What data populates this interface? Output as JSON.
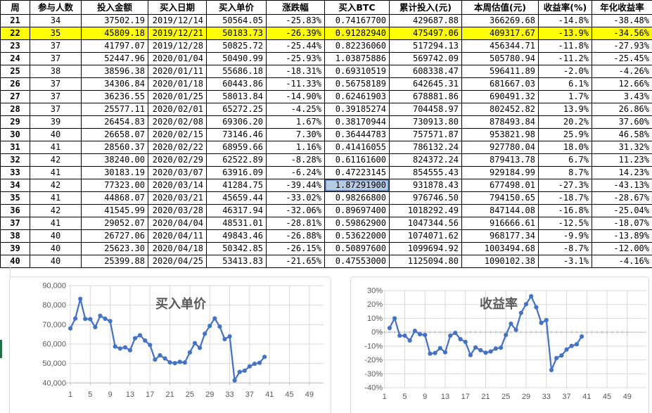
{
  "table": {
    "headers": [
      "周",
      "参与人数",
      "投入金额",
      "买入日期",
      "买入单价",
      "涨跌幅",
      "买入BTC",
      "累计投入(元)",
      "本周估值(元)",
      "收益率(%)",
      "年化收益率"
    ],
    "rows": [
      [
        "21",
        "34",
        "37502.19",
        "2019/12/14",
        "50564.05",
        "-25.83%",
        "0.74167700",
        "429687.88",
        "366269.68",
        "-14.8%",
        "-38.48%"
      ],
      [
        "22",
        "35",
        "45809.18",
        "2019/12/21",
        "50183.73",
        "-26.39%",
        "0.91282940",
        "475497.06",
        "409317.67",
        "-13.9%",
        "-34.56%"
      ],
      [
        "23",
        "37",
        "41797.07",
        "2019/12/28",
        "50825.72",
        "-25.44%",
        "0.82236060",
        "517294.13",
        "456344.71",
        "-11.8%",
        "-27.93%"
      ],
      [
        "24",
        "37",
        "52447.96",
        "2020/01/04",
        "50490.99",
        "-25.93%",
        "1.03875886",
        "569742.09",
        "505780.94",
        "-11.2%",
        "-25.45%"
      ],
      [
        "25",
        "38",
        "38596.38",
        "2020/01/11",
        "55686.18",
        "-18.31%",
        "0.69310519",
        "608338.47",
        "596411.89",
        "-2.0%",
        "-4.26%"
      ],
      [
        "26",
        "37",
        "34306.84",
        "2020/01/18",
        "60443.86",
        "-11.33%",
        "0.56758189",
        "642645.31",
        "681667.03",
        "6.1%",
        "12.66%"
      ],
      [
        "27",
        "37",
        "36236.55",
        "2020/01/25",
        "58013.84",
        "-14.90%",
        "0.62461903",
        "678881.86",
        "690491.32",
        "1.7%",
        "3.43%"
      ],
      [
        "28",
        "37",
        "25577.11",
        "2020/02/01",
        "65272.25",
        "-4.25%",
        "0.39185274",
        "704458.97",
        "802452.82",
        "13.9%",
        "26.86%"
      ],
      [
        "29",
        "39",
        "26454.83",
        "2020/02/08",
        "69306.20",
        "1.67%",
        "0.38170944",
        "730913.80",
        "878493.84",
        "20.2%",
        "37.60%"
      ],
      [
        "30",
        "40",
        "26658.07",
        "2020/02/15",
        "73146.46",
        "7.30%",
        "0.36444783",
        "757571.87",
        "953821.98",
        "25.9%",
        "46.58%"
      ],
      [
        "31",
        "41",
        "28560.37",
        "2020/02/22",
        "68959.66",
        "1.16%",
        "0.41416055",
        "786132.24",
        "927780.04",
        "18.0%",
        "31.32%"
      ],
      [
        "32",
        "42",
        "38240.00",
        "2020/02/29",
        "62522.89",
        "-8.28%",
        "0.61161600",
        "824372.24",
        "879413.78",
        "6.7%",
        "11.23%"
      ],
      [
        "33",
        "41",
        "30183.19",
        "2020/03/07",
        "63916.09",
        "-6.24%",
        "0.47223145",
        "854555.43",
        "929184.99",
        "8.7%",
        "14.23%"
      ],
      [
        "34",
        "42",
        "77323.00",
        "2020/03/14",
        "41284.75",
        "-39.44%",
        "1.87291900",
        "931878.43",
        "677498.01",
        "-27.3%",
        "-43.13%"
      ],
      [
        "35",
        "41",
        "44868.07",
        "2020/03/21",
        "45659.44",
        "-33.02%",
        "0.98266800",
        "976746.50",
        "794150.65",
        "-18.7%",
        "-28.67%"
      ],
      [
        "36",
        "42",
        "41545.99",
        "2020/03/28",
        "46317.94",
        "-32.06%",
        "0.89697400",
        "1018292.49",
        "847144.08",
        "-16.8%",
        "-25.04%"
      ],
      [
        "37",
        "41",
        "29052.07",
        "2020/04/04",
        "48531.01",
        "-28.81%",
        "0.59862900",
        "1047344.56",
        "916666.61",
        "-12.5%",
        "-18.07%"
      ],
      [
        "38",
        "40",
        "26727.06",
        "2020/04/11",
        "49843.46",
        "-26.88%",
        "0.53622000",
        "1074071.62",
        "968177.34",
        "-9.9%",
        "-13.89%"
      ],
      [
        "39",
        "40",
        "25623.30",
        "2020/04/18",
        "50342.85",
        "-26.15%",
        "0.50897600",
        "1099694.92",
        "1003494.68",
        "-8.7%",
        "-12.00%"
      ],
      [
        "40",
        "40",
        "25399.88",
        "2020/04/25",
        "53413.83",
        "-21.65%",
        "0.47553000",
        "1125094.80",
        "1090102.38",
        "-3.1%",
        "-4.16%"
      ]
    ],
    "highlight_row_week": "22",
    "selected_cell": {
      "week": "34",
      "col": 6,
      "value": "1.87291900"
    },
    "colors": {
      "highlight": "#FFFF00",
      "selected_fill": "#B6CBE3",
      "selected_border": "#3A66A7"
    }
  },
  "chart_data": [
    {
      "type": "line",
      "title": "买入单价",
      "x": [
        1,
        2,
        3,
        4,
        5,
        6,
        7,
        8,
        9,
        10,
        11,
        12,
        13,
        14,
        15,
        16,
        17,
        18,
        19,
        20,
        21,
        22,
        23,
        24,
        25,
        26,
        27,
        28,
        29,
        30,
        31,
        32,
        33,
        34,
        35,
        36,
        37,
        38,
        39,
        40
      ],
      "values": [
        68000,
        73100,
        83200,
        72900,
        72800,
        68700,
        74500,
        73000,
        71800,
        58700,
        57700,
        58300,
        56800,
        63000,
        64500,
        61800,
        59500,
        52000,
        54200,
        52600,
        50564,
        50184,
        50826,
        50491,
        55686,
        60444,
        58014,
        65272,
        69306,
        73146,
        68960,
        62523,
        63916,
        41285,
        45659,
        46318,
        48531,
        49843,
        50343,
        53414
      ],
      "ylim": [
        40000,
        90000
      ],
      "yticks": [
        90000,
        80000,
        70000,
        60000,
        50000,
        40000
      ],
      "ytick_labels": [
        "90,000",
        "80,000",
        "70,000",
        "60,000",
        "50,000",
        "40,000"
      ],
      "xticks": [
        1,
        5,
        9,
        13,
        17,
        21,
        25,
        29,
        33,
        37,
        41,
        45,
        49
      ],
      "xlim": [
        1,
        49
      ],
      "grid": "both",
      "line_color": "#4472C4"
    },
    {
      "type": "line",
      "title": "收益率",
      "x": [
        2,
        3,
        4,
        5,
        6,
        7,
        8,
        9,
        10,
        11,
        12,
        13,
        14,
        15,
        16,
        17,
        18,
        19,
        20,
        21,
        22,
        23,
        24,
        25,
        26,
        27,
        28,
        29,
        30,
        31,
        32,
        33,
        34,
        35,
        36,
        37,
        38,
        39,
        40
      ],
      "values": [
        3,
        10,
        -2.5,
        -2.5,
        -6,
        1,
        -1.5,
        -2,
        -15.5,
        -15,
        -11.5,
        -14.5,
        -2.5,
        -0.5,
        -5,
        -7,
        -16.5,
        -11,
        -13,
        -14.8,
        -13.9,
        -11.8,
        -11.2,
        -2.0,
        6.1,
        1.7,
        13.9,
        20.2,
        25.9,
        18.0,
        6.7,
        8.7,
        -27.3,
        -18.7,
        -16.8,
        -12.5,
        -9.9,
        -8.7,
        -3.1
      ],
      "ylim": [
        -40,
        30
      ],
      "yticks": [
        30,
        20,
        10,
        0,
        -10,
        -20,
        -30,
        -40
      ],
      "ytick_labels": [
        "30%",
        "20%",
        "10%",
        "0%",
        "-10%",
        "-20%",
        "-30%",
        "-40%"
      ],
      "xticks": [
        1,
        5,
        9,
        13,
        17,
        21,
        25,
        29,
        33,
        37,
        41,
        45,
        49
      ],
      "xlim": [
        1,
        49
      ],
      "grid": "both",
      "line_color": "#4472C4"
    }
  ],
  "chart_style": {
    "gridline": "#D9D9D9",
    "axis": "#BFBFBF",
    "label": "#595959",
    "title": "#595959"
  },
  "sheet_accent_color": "#217346"
}
